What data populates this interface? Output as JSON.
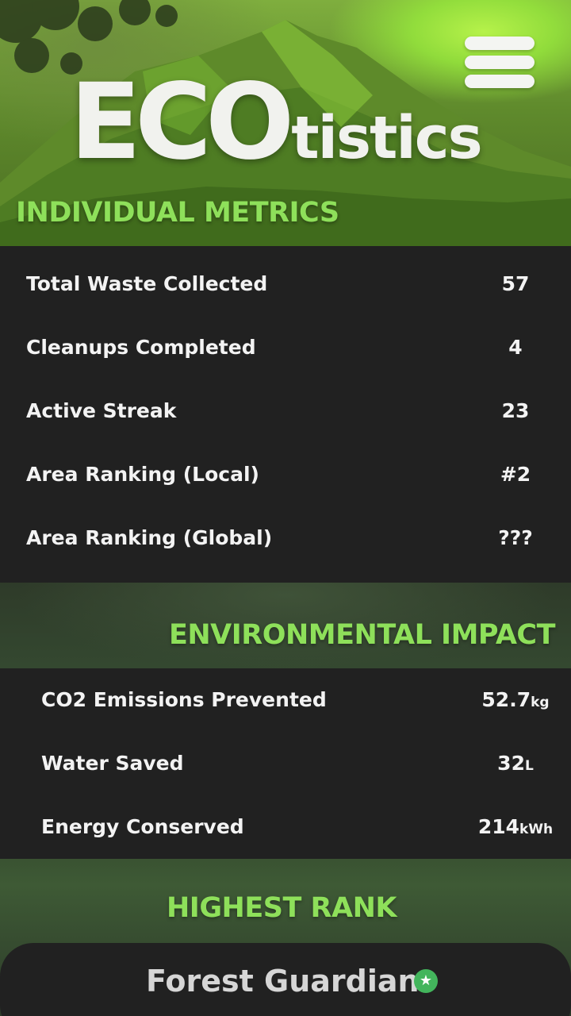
{
  "header": {
    "logo_main": "ECO",
    "logo_suffix": "tistics",
    "menu_icon": "hamburger-menu-icon"
  },
  "individual_metrics": {
    "title": "INDIVIDUAL METRICS",
    "rows": [
      {
        "label": "Total Waste Collected",
        "value": "57"
      },
      {
        "label": "Cleanups Completed",
        "value": "4"
      },
      {
        "label": "Active Streak",
        "value": "23"
      },
      {
        "label": "Area Ranking (Local)",
        "value": "#2"
      },
      {
        "label": "Area Ranking (Global)",
        "value": "???"
      }
    ]
  },
  "environmental_impact": {
    "title": "ENVIRONMENTAL IMPACT",
    "rows": [
      {
        "label": "CO2 Emissions Prevented",
        "value": "52.7",
        "unit": "kg"
      },
      {
        "label": "Water Saved",
        "value": "32",
        "unit": "L"
      },
      {
        "label": "Energy Conserved",
        "value": "214",
        "unit": "kWh"
      }
    ]
  },
  "highest_rank": {
    "title": "HIGHEST RANK",
    "name": "Forest Guardian",
    "badge_icon": "star-badge-icon",
    "badge_glyph": "★"
  },
  "colors": {
    "accent_green": "#8ee05a",
    "panel": "#212121",
    "text": "#f3f3f3",
    "badge": "#43b55c"
  }
}
